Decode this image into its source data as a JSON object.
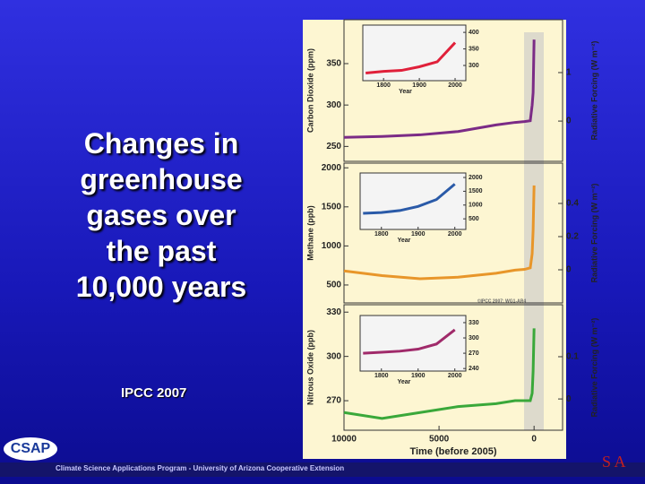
{
  "slide": {
    "title": "Changes in greenhouse gases over the past 10,000 years",
    "source": "IPCC 2007",
    "logo": "CSAP",
    "footer": "Climate Science Applications Program - University of Arizona Cooperative Extension",
    "credit": "©IPCC 2007: WG1-AR4",
    "brand": "S A"
  },
  "chart_data": [
    {
      "type": "line",
      "ylabel": "Carbon Dioxide (ppm)",
      "y2label": "Radiative Forcing (W m⁻²)",
      "xlim": [
        10000,
        -1500
      ],
      "ylim": [
        232,
        403
      ],
      "yticks": [
        250,
        300,
        350
      ],
      "y2lim": [
        -0.83,
        2.09
      ],
      "y2ticks": [
        0,
        1
      ],
      "x": [
        10000,
        8000,
        6000,
        4000,
        2000,
        1000,
        500,
        200,
        100,
        50,
        0
      ],
      "series": [
        {
          "color": "#7b2b86",
          "values": [
            261,
            262,
            264,
            268,
            276,
            279,
            280,
            281,
            300,
            315,
            379
          ]
        }
      ],
      "inset": {
        "xlim": [
          1742,
          2030
        ],
        "xticks": [
          1800,
          1900,
          2000
        ],
        "xlabel": "Year",
        "ylim": [
          254,
          422
        ],
        "yticks": [
          300,
          350,
          400
        ],
        "x": [
          1750,
          1800,
          1850,
          1900,
          1950,
          2000
        ],
        "series": [
          {
            "color": "#e0203a",
            "values": [
              277,
              282,
              285,
              296,
              311,
              369
            ]
          }
        ]
      }
    },
    {
      "type": "line",
      "ylabel": "Methane (ppb)",
      "y2label": "Radiative Forcing (W m⁻²)",
      "xlim": [
        10000,
        -1500
      ],
      "ylim": [
        270,
        2060
      ],
      "yticks": [
        500,
        1000,
        1500,
        2000
      ],
      "y2lim": [
        -0.2,
        0.643
      ],
      "y2ticks": [
        0,
        0.2,
        0.4
      ],
      "x": [
        10000,
        8000,
        6000,
        4000,
        2000,
        1000,
        500,
        200,
        100,
        50,
        0
      ],
      "series": [
        {
          "color": "#e8962a",
          "values": [
            680,
            620,
            580,
            600,
            650,
            690,
            700,
            720,
            900,
            1200,
            1774
          ]
        }
      ],
      "inset": {
        "xlim": [
          1742,
          2030
        ],
        "xticks": [
          1800,
          1900,
          2000
        ],
        "xlabel": "Year",
        "ylim": [
          115,
          2163
        ],
        "yticks": [
          500,
          1000,
          1500,
          2000
        ],
        "x": [
          1750,
          1800,
          1850,
          1900,
          1950,
          2000
        ],
        "series": [
          {
            "color": "#2a5aa8",
            "values": [
              700,
              730,
              800,
              950,
              1200,
              1760
            ]
          }
        ]
      }
    },
    {
      "type": "line",
      "ylabel": "Nitrous Oxide (ppb)",
      "y2label": "Radiative Forcing (W m⁻²)",
      "xlabel": "Time (before 2005)",
      "xlim": [
        10000,
        -1500
      ],
      "xticks": [
        10000,
        5000,
        0
      ],
      "ylim": [
        250,
        335
      ],
      "yticks": [
        270,
        300,
        330
      ],
      "y2lim": [
        -0.074,
        0.223
      ],
      "y2ticks": [
        0,
        0.1
      ],
      "x": [
        10000,
        8000,
        6000,
        4000,
        2000,
        1000,
        500,
        200,
        100,
        50,
        0
      ],
      "series": [
        {
          "color": "#3aa83a",
          "values": [
            262,
            258,
            262,
            266,
            268,
            270,
            270,
            270,
            275,
            290,
            319
          ]
        }
      ],
      "inset": {
        "xlim": [
          1742,
          2030
        ],
        "xticks": [
          1800,
          1900,
          2000
        ],
        "xlabel": "Year",
        "ylim": [
          235,
          344
        ],
        "yticks": [
          240,
          270,
          300,
          330
        ],
        "x": [
          1750,
          1800,
          1850,
          1900,
          1950,
          2000
        ],
        "series": [
          {
            "color": "#a02a6a",
            "values": [
              270,
              272,
              274,
              278,
              288,
              316
            ]
          }
        ]
      }
    }
  ]
}
